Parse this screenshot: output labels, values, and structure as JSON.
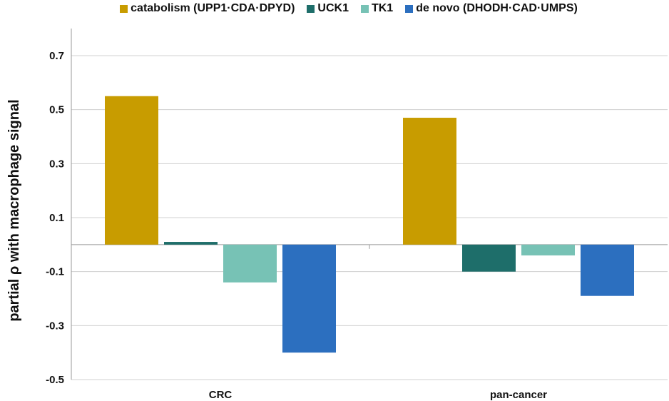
{
  "chart_data": {
    "type": "bar",
    "categories": [
      "CRC",
      "pan-cancer"
    ],
    "series": [
      {
        "name": "catabolism (UPP1·CDA·DPYD)",
        "color": "#c89c00",
        "values": [
          0.55,
          0.47
        ]
      },
      {
        "name": "UCK1",
        "color": "#1e6e6a",
        "values": [
          0.01,
          -0.1
        ]
      },
      {
        "name": "TK1",
        "color": "#77c2b5",
        "values": [
          -0.14,
          -0.04
        ]
      },
      {
        "name": "de novo (DHODH·CAD·UMPS)",
        "color": "#2c6fbf",
        "values": [
          -0.4,
          -0.19
        ]
      }
    ],
    "title": "",
    "xlabel": "",
    "ylabel": "partial ρ with macrophage signal",
    "ylim": [
      -0.5,
      0.7
    ],
    "yticks": [
      "0.7",
      "0.5",
      "0.3",
      "0.1",
      "-0.1",
      "-0.3",
      "-0.5"
    ],
    "grid": true,
    "legend_position": "top"
  }
}
